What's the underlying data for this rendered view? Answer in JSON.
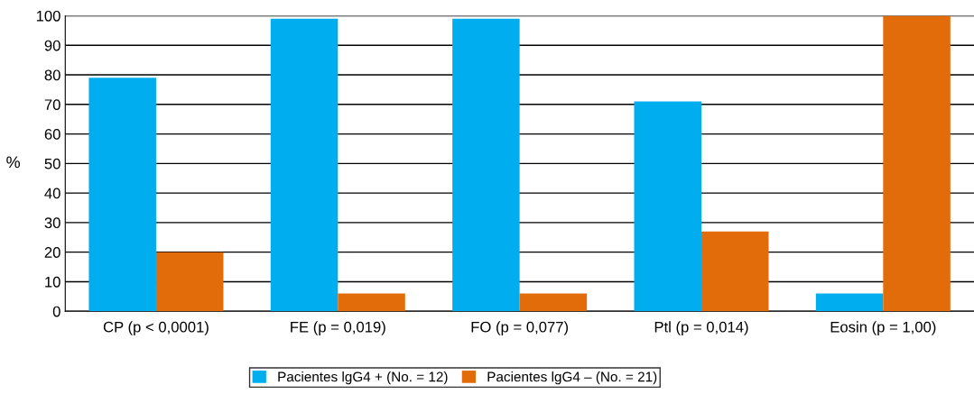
{
  "chart_data": {
    "type": "bar",
    "ylabel": "%",
    "categories": [
      "CP (p < 0,0001)",
      "FE (p = 0,019)",
      "FO (p = 0,077)",
      "Ptl (p = 0,014)",
      "Eosin (p = 1,00)"
    ],
    "series": [
      {
        "name": "Pacientes lgG4 + (No. = 12)",
        "color": "#00aeef",
        "values": [
          79,
          99,
          99,
          71,
          6
        ]
      },
      {
        "name": "Pacientes lgG4 – (No. = 21)",
        "color": "#e36c0a",
        "values": [
          20,
          6,
          6,
          27,
          100
        ]
      }
    ],
    "ylim": [
      0,
      100
    ],
    "yticks": [
      0,
      10,
      20,
      30,
      40,
      50,
      60,
      70,
      80,
      90,
      100
    ],
    "grid": "y",
    "legend": "bottom"
  }
}
